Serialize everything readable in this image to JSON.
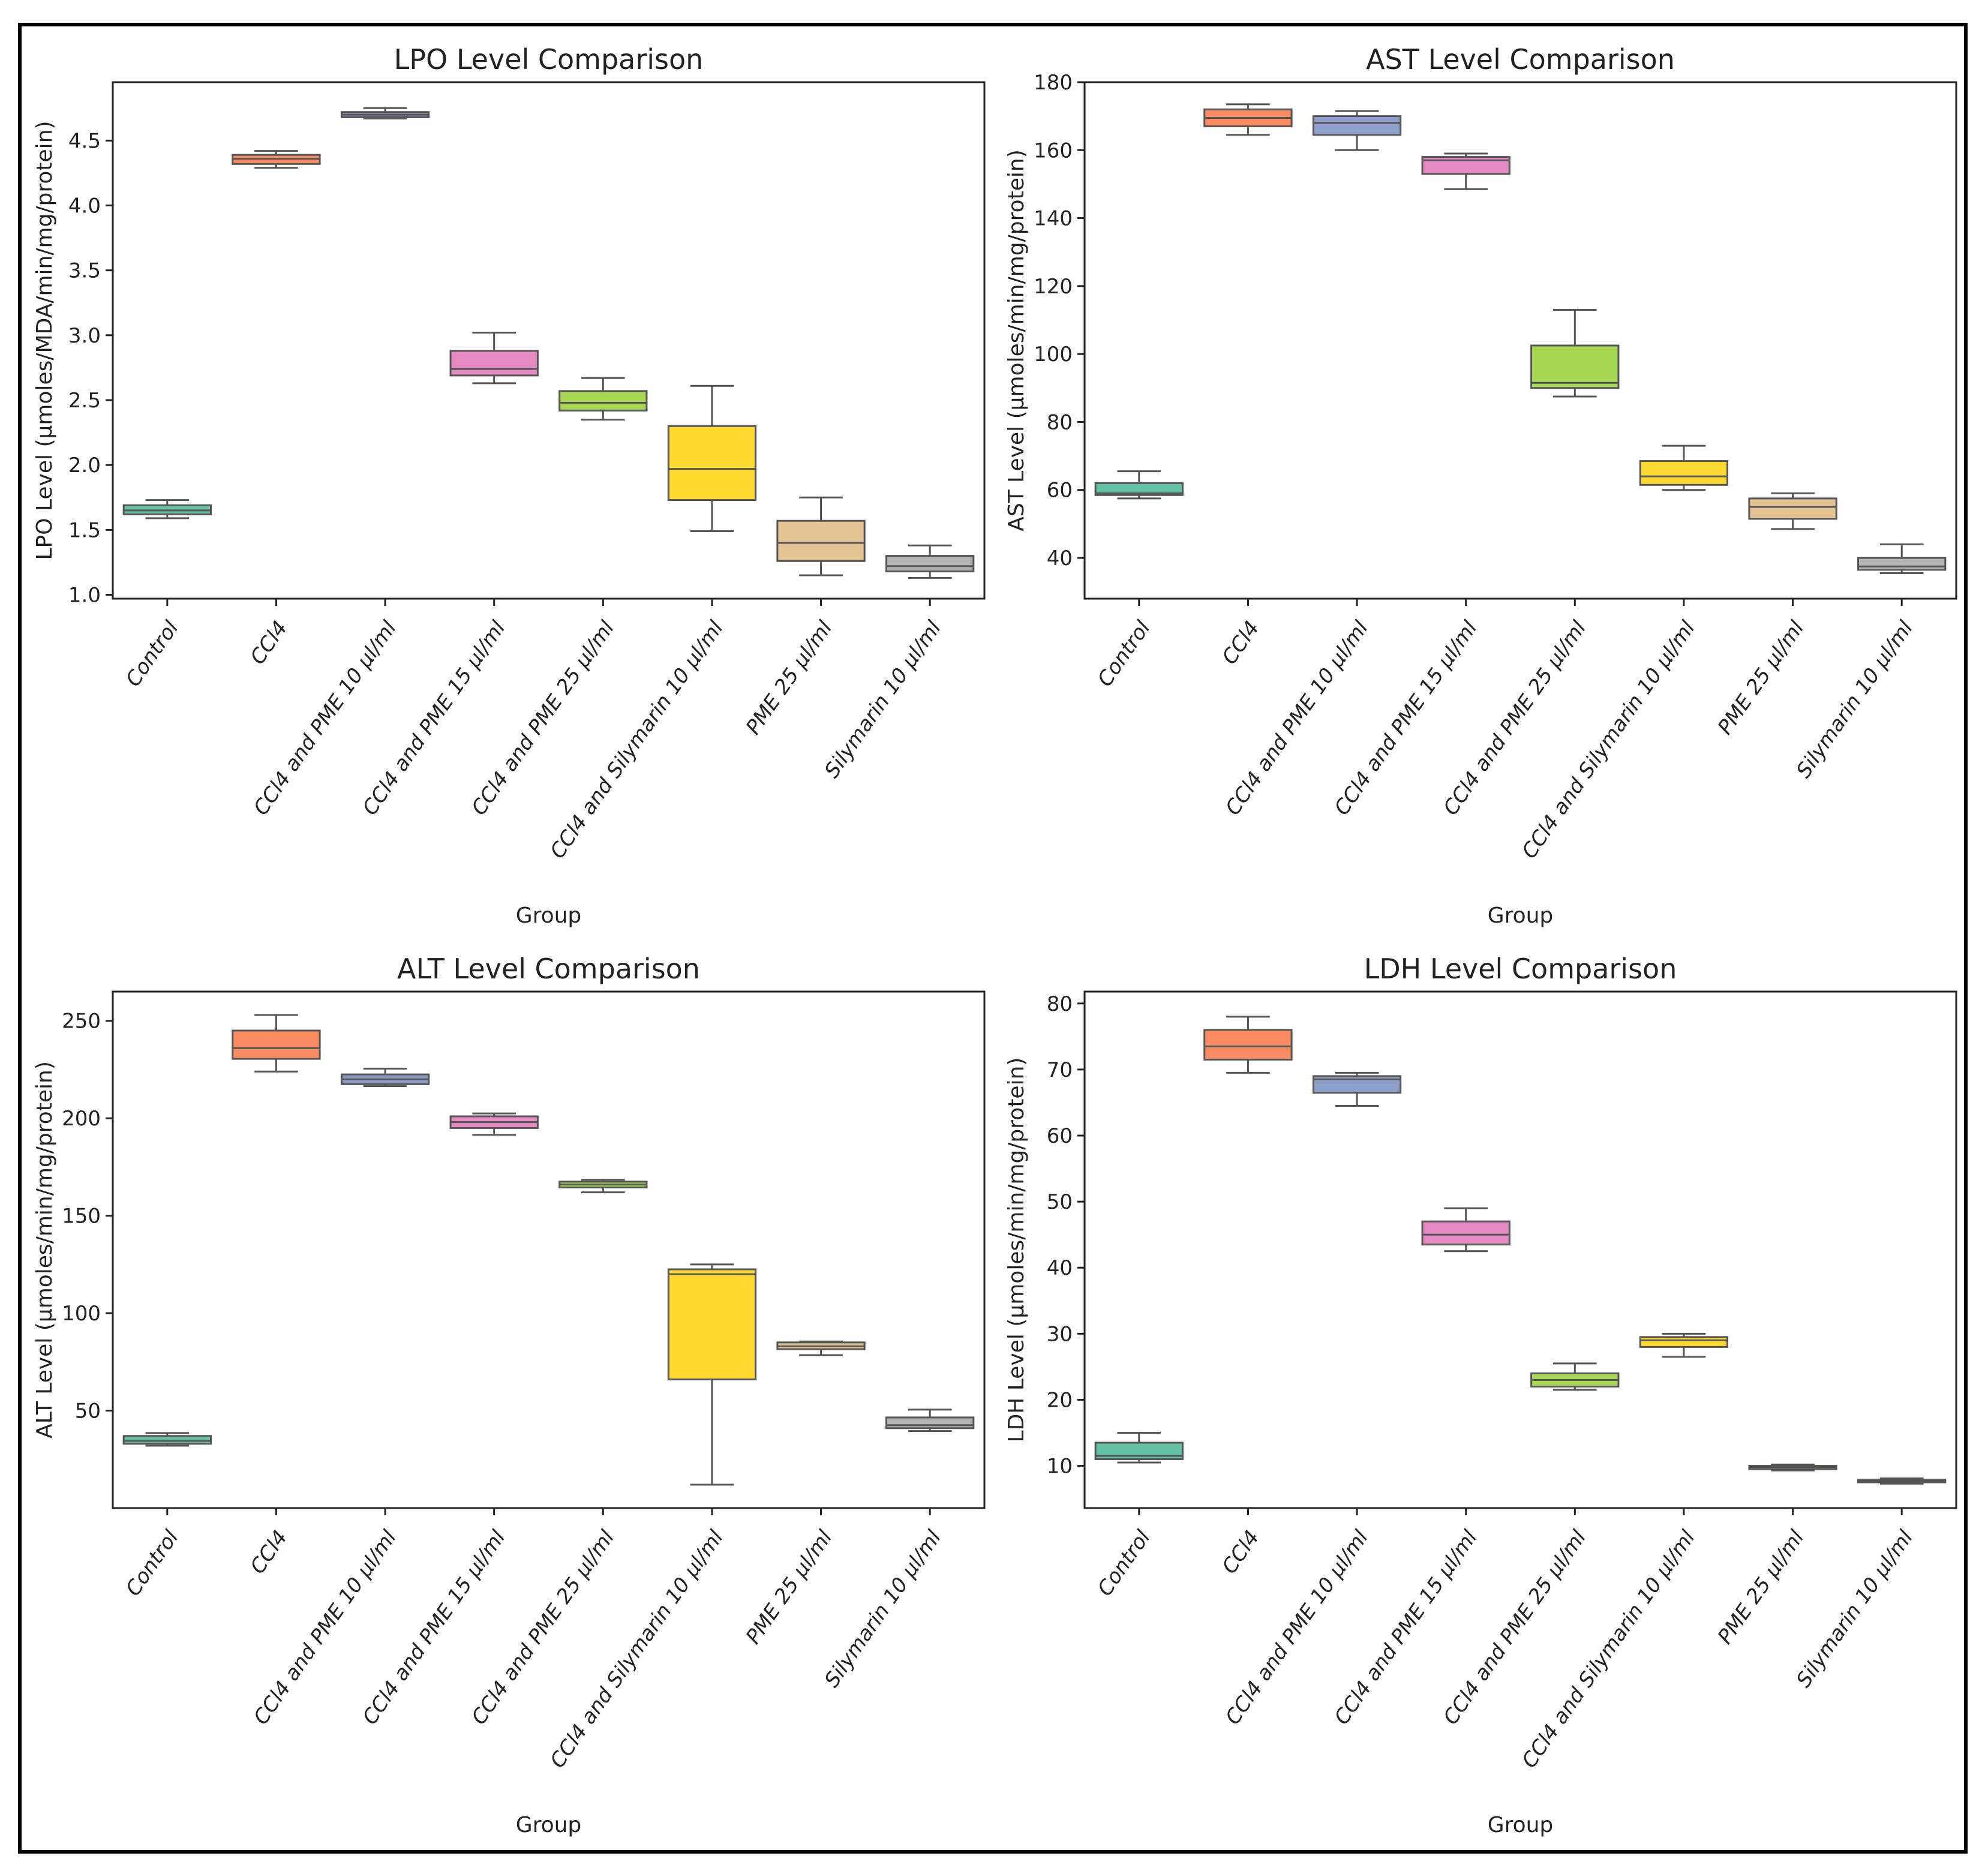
{
  "chart_data": [
    {
      "type": "boxplot",
      "title": "LPO Level Comparison",
      "xlabel": "Group",
      "ylabel": "LPO Level (µmoles/MDA/min/mg/protein)",
      "categories": [
        "Control",
        "CCl4",
        "CCl4 and PME 10 µl/ml",
        "CCl4 and PME 15 µl/ml",
        "CCl4 and PME 25 µl/ml",
        "CCl4 and Silymarin 10 µl/ml",
        "PME 25 µl/ml",
        "Silymarin 10 µl/ml"
      ],
      "ylim": [
        0.97,
        4.95
      ],
      "yticks": [
        1.0,
        1.5,
        2.0,
        2.5,
        3.0,
        3.5,
        4.0,
        4.5
      ],
      "ytick_labels": [
        "1.0",
        "1.5",
        "2.0",
        "2.5",
        "3.0",
        "3.5",
        "4.0",
        "4.5"
      ],
      "boxes": [
        {
          "min": 1.59,
          "q1": 1.62,
          "median": 1.65,
          "q3": 1.69,
          "max": 1.73
        },
        {
          "min": 4.29,
          "q1": 4.32,
          "median": 4.36,
          "q3": 4.39,
          "max": 4.42
        },
        {
          "min": 4.67,
          "q1": 4.68,
          "median": 4.7,
          "q3": 4.72,
          "max": 4.75
        },
        {
          "min": 2.63,
          "q1": 2.69,
          "median": 2.74,
          "q3": 2.88,
          "max": 3.02
        },
        {
          "min": 2.35,
          "q1": 2.42,
          "median": 2.48,
          "q3": 2.57,
          "max": 2.67
        },
        {
          "min": 1.49,
          "q1": 1.73,
          "median": 1.97,
          "q3": 2.3,
          "max": 2.61
        },
        {
          "min": 1.15,
          "q1": 1.26,
          "median": 1.4,
          "q3": 1.57,
          "max": 1.75
        },
        {
          "min": 1.13,
          "q1": 1.18,
          "median": 1.22,
          "q3": 1.3,
          "max": 1.38
        }
      ]
    },
    {
      "type": "boxplot",
      "title": "AST Level Comparison",
      "xlabel": "Group",
      "ylabel": "AST Level (µmoles/min/mg/protein)",
      "categories": [
        "Control",
        "CCl4",
        "CCl4 and PME 10 µl/ml",
        "CCl4 and PME 15 µl/ml",
        "CCl4 and PME 25 µl/ml",
        "CCl4 and Silymarin 10 µl/ml",
        "PME 25 µl/ml",
        "Silymarin 10 µl/ml"
      ],
      "ylim": [
        28,
        180
      ],
      "yticks": [
        40,
        60,
        80,
        100,
        120,
        140,
        160,
        180
      ],
      "ytick_labels": [
        "40",
        "60",
        "80",
        "100",
        "120",
        "140",
        "160",
        "180"
      ],
      "boxes": [
        {
          "min": 57.5,
          "q1": 58.5,
          "median": 59.0,
          "q3": 62.0,
          "max": 65.5
        },
        {
          "min": 164.5,
          "q1": 167.0,
          "median": 169.5,
          "q3": 172.0,
          "max": 173.5
        },
        {
          "min": 160.0,
          "q1": 164.5,
          "median": 168.0,
          "q3": 170.0,
          "max": 171.5
        },
        {
          "min": 148.5,
          "q1": 153.0,
          "median": 157.0,
          "q3": 158.0,
          "max": 159.0
        },
        {
          "min": 87.5,
          "q1": 90.0,
          "median": 91.5,
          "q3": 102.5,
          "max": 113.0
        },
        {
          "min": 60.0,
          "q1": 61.5,
          "median": 64.0,
          "q3": 68.5,
          "max": 73.0
        },
        {
          "min": 48.5,
          "q1": 51.5,
          "median": 55.0,
          "q3": 57.5,
          "max": 59.0
        },
        {
          "min": 35.5,
          "q1": 36.5,
          "median": 37.5,
          "q3": 40.0,
          "max": 44.0
        }
      ]
    },
    {
      "type": "boxplot",
      "title": "ALT Level Comparison",
      "xlabel": "Group",
      "ylabel": "ALT Level (µmoles/min/mg/protein)",
      "categories": [
        "Control",
        "CCl4",
        "CCl4 and PME 10 µl/ml",
        "CCl4 and PME 15 µl/ml",
        "CCl4 and PME 25 µl/ml",
        "CCl4 and Silymarin 10 µl/ml",
        "PME 25 µl/ml",
        "Silymarin 10 µl/ml"
      ],
      "ylim": [
        0,
        265
      ],
      "yticks": [
        50,
        100,
        150,
        200,
        250
      ],
      "ytick_labels": [
        "50",
        "100",
        "150",
        "200",
        "250"
      ],
      "boxes": [
        {
          "min": 32.0,
          "q1": 33.0,
          "median": 34.5,
          "q3": 37.0,
          "max": 38.5
        },
        {
          "min": 224.0,
          "q1": 230.5,
          "median": 236.0,
          "q3": 245.0,
          "max": 253.0
        },
        {
          "min": 216.5,
          "q1": 217.5,
          "median": 220.0,
          "q3": 222.5,
          "max": 225.5
        },
        {
          "min": 191.5,
          "q1": 195.0,
          "median": 198.0,
          "q3": 201.0,
          "max": 202.5
        },
        {
          "min": 162.0,
          "q1": 164.5,
          "median": 166.0,
          "q3": 167.5,
          "max": 168.5
        },
        {
          "min": 12.0,
          "q1": 66.0,
          "median": 120.0,
          "q3": 122.5,
          "max": 125.0
        },
        {
          "min": 78.5,
          "q1": 81.5,
          "median": 83.0,
          "q3": 85.0,
          "max": 85.5
        },
        {
          "min": 39.5,
          "q1": 41.0,
          "median": 42.5,
          "q3": 46.5,
          "max": 50.5
        }
      ]
    },
    {
      "type": "boxplot",
      "title": "LDH Level Comparison",
      "xlabel": "Group",
      "ylabel": "LDH Level (µmoles/min/mg/protein)",
      "categories": [
        "Control",
        "CCl4",
        "CCl4 and PME 10 µl/ml",
        "CCl4 and PME 15 µl/ml",
        "CCl4 and PME 25 µl/ml",
        "CCl4 and Silymarin 10 µl/ml",
        "PME 25 µl/ml",
        "Silymarin 10 µl/ml"
      ],
      "ylim": [
        3.6,
        81.8
      ],
      "yticks": [
        10,
        20,
        30,
        40,
        50,
        60,
        70,
        80
      ],
      "ytick_labels": [
        "10",
        "20",
        "30",
        "40",
        "50",
        "60",
        "70",
        "80"
      ],
      "boxes": [
        {
          "min": 10.5,
          "q1": 11.0,
          "median": 11.5,
          "q3": 13.5,
          "max": 15.0
        },
        {
          "min": 69.5,
          "q1": 71.5,
          "median": 73.5,
          "q3": 76.0,
          "max": 78.0
        },
        {
          "min": 64.5,
          "q1": 66.5,
          "median": 68.5,
          "q3": 69.0,
          "max": 69.5
        },
        {
          "min": 42.5,
          "q1": 43.5,
          "median": 45.0,
          "q3": 47.0,
          "max": 49.0
        },
        {
          "min": 21.5,
          "q1": 22.0,
          "median": 23.0,
          "q3": 24.0,
          "max": 25.5
        },
        {
          "min": 26.5,
          "q1": 28.0,
          "median": 29.0,
          "q3": 29.5,
          "max": 30.0
        },
        {
          "min": 9.3,
          "q1": 9.5,
          "median": 9.8,
          "q3": 10.0,
          "max": 10.2
        },
        {
          "min": 7.3,
          "q1": 7.5,
          "median": 7.7,
          "q3": 7.9,
          "max": 8.1
        }
      ]
    }
  ],
  "colors": {
    "palette": [
      "#66c2a5",
      "#fc8d62",
      "#8da0cb",
      "#e78ac3",
      "#a6d854",
      "#ffd92f",
      "#e5c494",
      "#b3b3b3"
    ],
    "axis": "#222222",
    "box_edge": "#555555"
  }
}
